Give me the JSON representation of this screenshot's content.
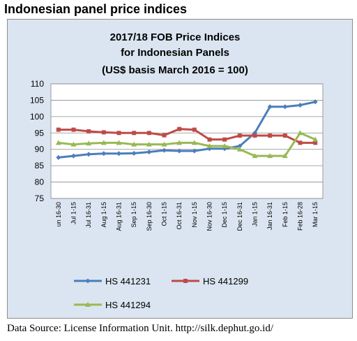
{
  "header": {
    "title": "Indonesian panel price indices"
  },
  "source": {
    "text": "Data Source: License Information Unit. http://silk.dephut.go.id/"
  },
  "chart_data": {
    "type": "line",
    "title_lines": [
      "2017/18 FOB Price Indices",
      "for Indonesian Panels",
      "(US$ basis March  2016 = 100)"
    ],
    "categories": [
      "Jun 16-30",
      "Jul 1-15",
      "Jul 16-31",
      "Aug 1-15",
      "Aug 16-31",
      "Sep 1-15",
      "Sep 16-30",
      "Oct 1-15",
      "Oct 16-31",
      "Nov 1-15",
      "Nov 16-30",
      "Dec 1-15",
      "Dec 16-31",
      "Jan 1-15",
      "Jan 16-31",
      "Feb 1-15",
      "Feb 16-28",
      "Mar 1-15"
    ],
    "category_labels": [
      "un 16-30",
      "Jul 1-15",
      "Jul 16-31",
      "Aug 1-15",
      "Aug 16-31",
      "Sep 1-15",
      "Sep 16-30",
      "Oct 1-15",
      "Oct 16-31",
      "Nov 1-15",
      "Nov 16-30",
      "Dec 1-15",
      "Dec 16-31",
      "Jan 1-15",
      "Jan 16-31",
      "Feb 1-15",
      "Feb 16-28",
      "Mar 1-15"
    ],
    "ylim": [
      75,
      110
    ],
    "yticks": [
      75,
      80,
      85,
      90,
      95,
      100,
      105,
      110
    ],
    "grid": true,
    "legend_position": "bottom",
    "series": [
      {
        "name": "HS 441231",
        "color": "#4a7ebb",
        "marker": "diamond",
        "values": [
          87.5,
          88,
          88.5,
          88.7,
          88.7,
          88.8,
          89.2,
          89.7,
          89.5,
          89.5,
          90.2,
          90.2,
          91,
          95,
          103,
          103,
          103.5,
          104.5
        ]
      },
      {
        "name": "HS 441299",
        "color": "#be4b48",
        "marker": "square",
        "values": [
          96,
          96,
          95.5,
          95.2,
          95,
          95,
          95,
          94.3,
          96.2,
          96,
          93,
          93,
          94.2,
          94.2,
          94.2,
          94.2,
          92,
          92
        ]
      },
      {
        "name": "HS 441294",
        "color": "#98b954",
        "marker": "triangle",
        "values": [
          92,
          91.5,
          91.8,
          92,
          92,
          91.5,
          91.5,
          91.5,
          92,
          92,
          91,
          91,
          90,
          88,
          88,
          88,
          95,
          93
        ]
      }
    ]
  }
}
